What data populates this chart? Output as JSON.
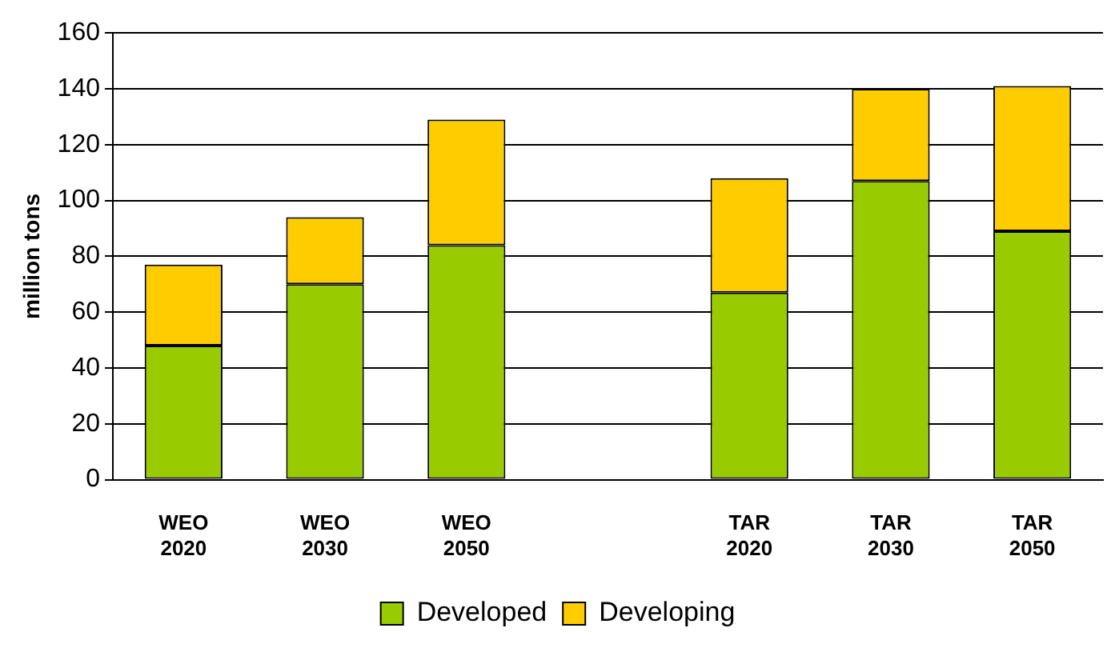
{
  "chart_data": {
    "type": "bar",
    "stacked": true,
    "ylabel": "million tons",
    "categories": [
      "WEO 2020",
      "WEO 2030",
      "WEO 2050",
      null,
      "TAR 2020",
      "TAR 2030",
      "TAR 2050"
    ],
    "series": [
      {
        "name": "Developed",
        "color": "#99cc00",
        "values": [
          48,
          70,
          84,
          null,
          67,
          107,
          89
        ]
      },
      {
        "name": "Developing",
        "color": "#ffcc00",
        "values": [
          29,
          24,
          45,
          null,
          41,
          33,
          52
        ]
      }
    ],
    "ylim": [
      0,
      160
    ],
    "yticks": [
      0,
      20,
      40,
      60,
      80,
      100,
      120,
      140,
      160
    ],
    "grid": "y",
    "legend": "bottom"
  }
}
